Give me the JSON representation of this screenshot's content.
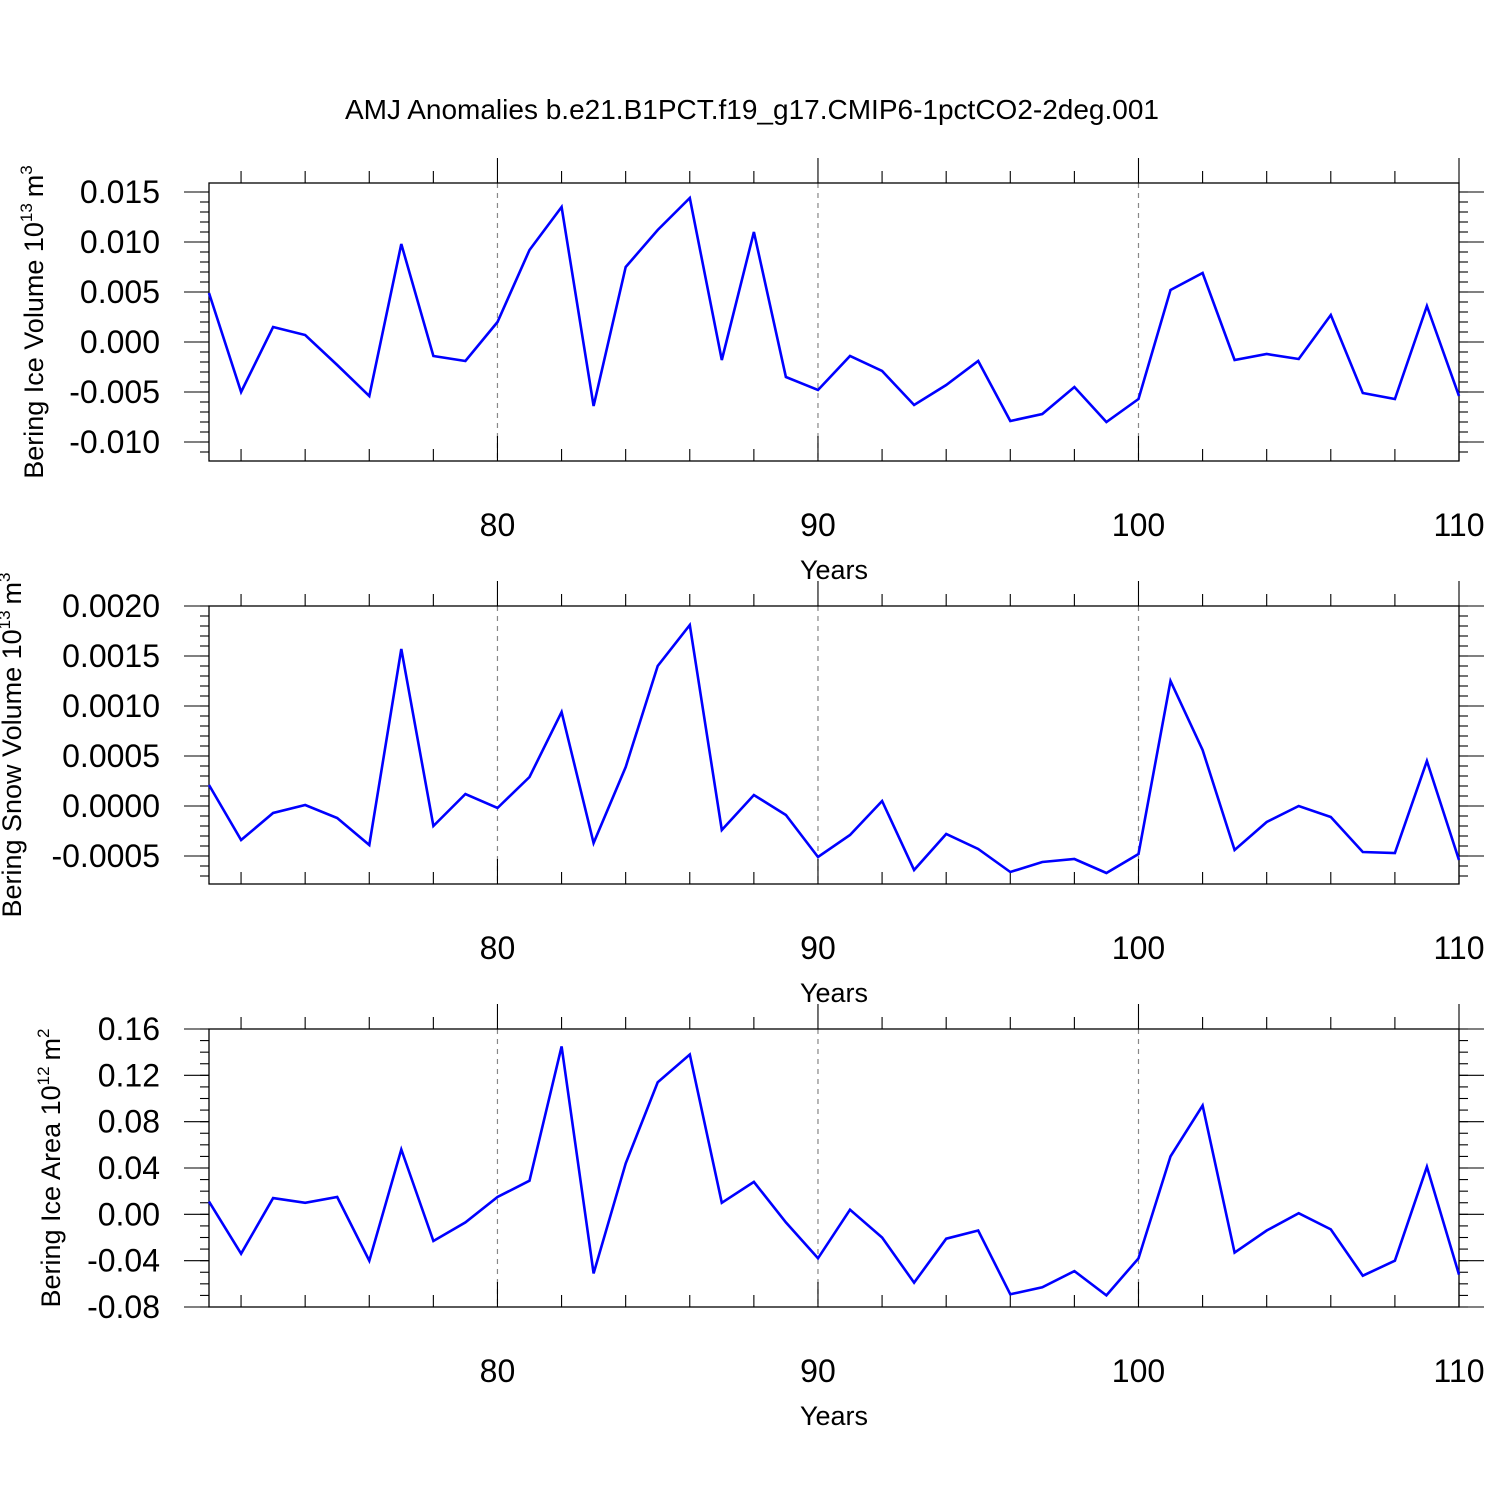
{
  "title": "AMJ Anomalies b.e21.B1PCT.f19_g17.CMIP6-1pctCO2-2deg.001",
  "colors": {
    "line": "#0000ff",
    "grid": "#888888",
    "axis": "#000000"
  },
  "chart_data": [
    {
      "type": "line",
      "ylabel": "Bering Ice Volume",
      "yunit_base": "10",
      "yunit_exp": "13",
      "yunit_tail": "m",
      "yunit_tail_exp": "3",
      "xlabel": "Years",
      "xlim": [
        71,
        110
      ],
      "ylim": [
        -0.0119,
        0.0159
      ],
      "yticks": [
        -0.01,
        -0.005,
        0.0,
        0.005,
        0.01,
        0.015
      ],
      "ytick_labels": [
        "-0.010",
        "-0.005",
        "0.000",
        "0.005",
        "0.010",
        "0.015"
      ],
      "yminor_step": 0.001,
      "xticks": [
        80,
        90,
        100,
        110
      ],
      "xtick_labels": [
        "80",
        "90",
        "100",
        "110"
      ],
      "xgrid": [
        80,
        90,
        100
      ],
      "x": [
        71,
        72,
        73,
        74,
        75,
        76,
        77,
        78,
        79,
        80,
        81,
        82,
        83,
        84,
        85,
        86,
        87,
        88,
        89,
        90,
        91,
        92,
        93,
        94,
        95,
        96,
        97,
        98,
        99,
        100,
        101,
        102,
        103,
        104,
        105,
        106,
        107,
        108,
        109,
        110
      ],
      "y": [
        0.0049,
        -0.005,
        0.0015,
        0.0007,
        -0.0023,
        -0.0054,
        0.0098,
        -0.0014,
        -0.0019,
        0.002,
        0.0092,
        0.0135,
        -0.0064,
        0.0075,
        0.0112,
        0.0144,
        -0.0018,
        0.011,
        -0.0035,
        -0.0048,
        -0.0014,
        -0.0029,
        -0.0063,
        -0.0043,
        -0.0019,
        -0.0079,
        -0.0072,
        -0.0045,
        -0.008,
        -0.0057,
        0.0052,
        0.0069,
        -0.0018,
        -0.0012,
        -0.0017,
        0.0027,
        -0.0051,
        -0.0057,
        0.0036,
        -0.0054
      ]
    },
    {
      "type": "line",
      "ylabel": "Bering Snow Volume",
      "yunit_base": "10",
      "yunit_exp": "13",
      "yunit_tail": "m",
      "yunit_tail_exp": "3",
      "xlabel": "Years",
      "xlim": [
        71,
        110
      ],
      "ylim": [
        -0.00078,
        0.002
      ],
      "yticks": [
        -0.0005,
        0.0,
        0.0005,
        0.001,
        0.0015,
        0.002
      ],
      "ytick_labels": [
        "-0.0005",
        "0.0000",
        "0.0005",
        "0.0010",
        "0.0015",
        "0.0020"
      ],
      "yminor_step": 0.0001,
      "xticks": [
        80,
        90,
        100,
        110
      ],
      "xtick_labels": [
        "80",
        "90",
        "100",
        "110"
      ],
      "xgrid": [
        80,
        90,
        100
      ],
      "x": [
        71,
        72,
        73,
        74,
        75,
        76,
        77,
        78,
        79,
        80,
        81,
        82,
        83,
        84,
        85,
        86,
        87,
        88,
        89,
        90,
        91,
        92,
        93,
        94,
        95,
        96,
        97,
        98,
        99,
        100,
        101,
        102,
        103,
        104,
        105,
        106,
        107,
        108,
        109,
        110
      ],
      "y": [
        0.00021,
        -0.00034,
        -7e-05,
        1e-05,
        -0.00012,
        -0.00039,
        0.00157,
        -0.0002,
        0.00012,
        -2e-05,
        0.00029,
        0.00094,
        -0.00037,
        0.00039,
        0.0014,
        0.00181,
        -0.00024,
        0.00011,
        -9e-05,
        -0.00051,
        -0.00029,
        5e-05,
        -0.00064,
        -0.00028,
        -0.00043,
        -0.00066,
        -0.00056,
        -0.00053,
        -0.00067,
        -0.00048,
        0.00125,
        0.00056,
        -0.00044,
        -0.00016,
        0.0,
        -0.00011,
        -0.00046,
        -0.00047,
        0.00045,
        -0.00054
      ]
    },
    {
      "type": "line",
      "ylabel": "Bering Ice Area",
      "yunit_base": "10",
      "yunit_exp": "12",
      "yunit_tail": "m",
      "yunit_tail_exp": "2",
      "xlabel": "Years",
      "xlim": [
        71,
        110
      ],
      "ylim": [
        -0.08,
        0.16
      ],
      "yticks": [
        -0.08,
        -0.04,
        0.0,
        0.04,
        0.08,
        0.12,
        0.16
      ],
      "ytick_labels": [
        "-0.08",
        "-0.04",
        "0.00",
        "0.04",
        "0.08",
        "0.12",
        "0.16"
      ],
      "yminor_step": 0.01,
      "xticks": [
        80,
        90,
        100,
        110
      ],
      "xtick_labels": [
        "80",
        "90",
        "100",
        "110"
      ],
      "xgrid": [
        80,
        90,
        100
      ],
      "x": [
        71,
        72,
        73,
        74,
        75,
        76,
        77,
        78,
        79,
        80,
        81,
        82,
        83,
        84,
        85,
        86,
        87,
        88,
        89,
        90,
        91,
        92,
        93,
        94,
        95,
        96,
        97,
        98,
        99,
        100,
        101,
        102,
        103,
        104,
        105,
        106,
        107,
        108,
        109,
        110
      ],
      "y": [
        0.011,
        -0.034,
        0.014,
        0.01,
        0.015,
        -0.04,
        0.056,
        -0.023,
        -0.007,
        0.015,
        0.029,
        0.145,
        -0.051,
        0.044,
        0.114,
        0.138,
        0.01,
        0.028,
        -0.007,
        -0.038,
        0.004,
        -0.02,
        -0.059,
        -0.021,
        -0.014,
        -0.069,
        -0.063,
        -0.049,
        -0.07,
        -0.038,
        0.05,
        0.094,
        -0.033,
        -0.014,
        0.001,
        -0.013,
        -0.053,
        -0.04,
        0.041,
        -0.052
      ]
    }
  ]
}
